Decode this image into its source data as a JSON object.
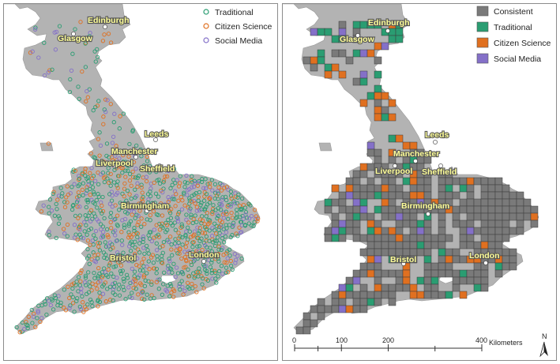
{
  "colors": {
    "land": "#b3b3b3",
    "land_stroke": "#9a9a9a",
    "sea": "#ffffff",
    "consistent": "#7a7a7a",
    "traditional": "#2a9d72",
    "citizen_science": "#e07020",
    "social_media": "#8470c8",
    "city_label": "#ffff99"
  },
  "left_map": {
    "legend": [
      "Traditional",
      "Citizen Science",
      "Social Media"
    ],
    "cities": [
      "Edinburgh",
      "Glasgow",
      "Leeds",
      "Manchester",
      "Liverpool",
      "Sheffield",
      "Birmingham",
      "Bristol",
      "London"
    ]
  },
  "right_map": {
    "legend": [
      "Consistent",
      "Traditional",
      "Citizen Science",
      "Social Media"
    ],
    "cities": [
      "Edinburgh",
      "Glasgow",
      "Leeds",
      "Manchester",
      "Liverpool",
      "Sheffield",
      "Birmingham",
      "Bristol",
      "London"
    ],
    "scale_ticks": [
      "0",
      "100",
      "200",
      "400"
    ],
    "scale_unit": "Kilometers",
    "north_label": "N"
  }
}
